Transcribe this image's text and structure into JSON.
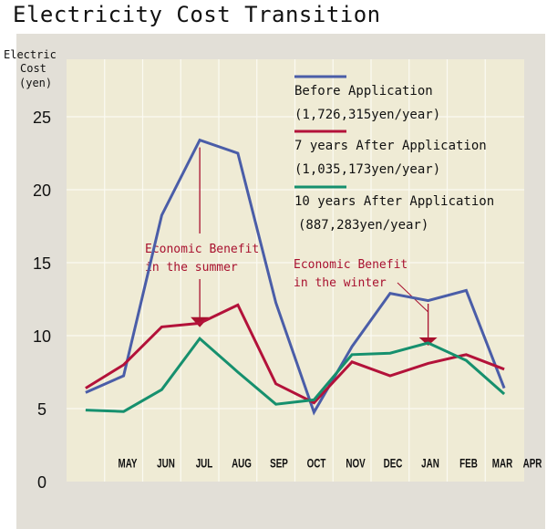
{
  "title": "Electricity Cost Transition",
  "chart_data": {
    "type": "line",
    "title": "Electricity Cost Transition",
    "ylabel": [
      "Electric",
      "Cost",
      "(yen)"
    ],
    "xlabel": "",
    "ylim": [
      0,
      29
    ],
    "yticks": [
      0,
      5,
      10,
      15,
      20,
      25
    ],
    "grid": true,
    "legend_position": "top-right",
    "categories": [
      "MAY",
      "JUN",
      "JUL",
      "AUG",
      "SEP",
      "OCT",
      "NOV",
      "DEC",
      "JAN",
      "FEB",
      "MAR",
      "APR"
    ],
    "series": [
      {
        "name": "Before Application",
        "subtitle": "(1,726,315yen/year)",
        "color": "#4a5da8",
        "values": [
          6.1,
          7.25,
          18.25,
          23.4,
          22.5,
          12.25,
          4.75,
          9.25,
          12.9,
          12.4,
          13.1,
          6.4
        ]
      },
      {
        "name": "7 years After Application",
        "subtitle": "(1,035,173yen/year)",
        "color": "#b3123a",
        "values": [
          6.4,
          8.0,
          10.6,
          10.85,
          12.1,
          6.7,
          5.4,
          8.2,
          7.25,
          8.1,
          8.7,
          7.7
        ]
      },
      {
        "name": "10 years After Application",
        "subtitle": "(887,283yen/year)",
        "color": "#16906e",
        "values": [
          4.9,
          4.8,
          6.3,
          9.8,
          7.5,
          5.3,
          5.6,
          8.7,
          8.8,
          9.5,
          8.3,
          6.0
        ]
      }
    ],
    "annotations": [
      {
        "lines": [
          "Economic Benefit",
          "in the summer"
        ],
        "month": "AUG",
        "from_value": 23.4,
        "to_value": 11.2
      },
      {
        "lines": [
          "Economic Benefit",
          "in the winter"
        ],
        "month": "FEB",
        "from_value": 12.4,
        "to_value": 10.0
      }
    ]
  }
}
